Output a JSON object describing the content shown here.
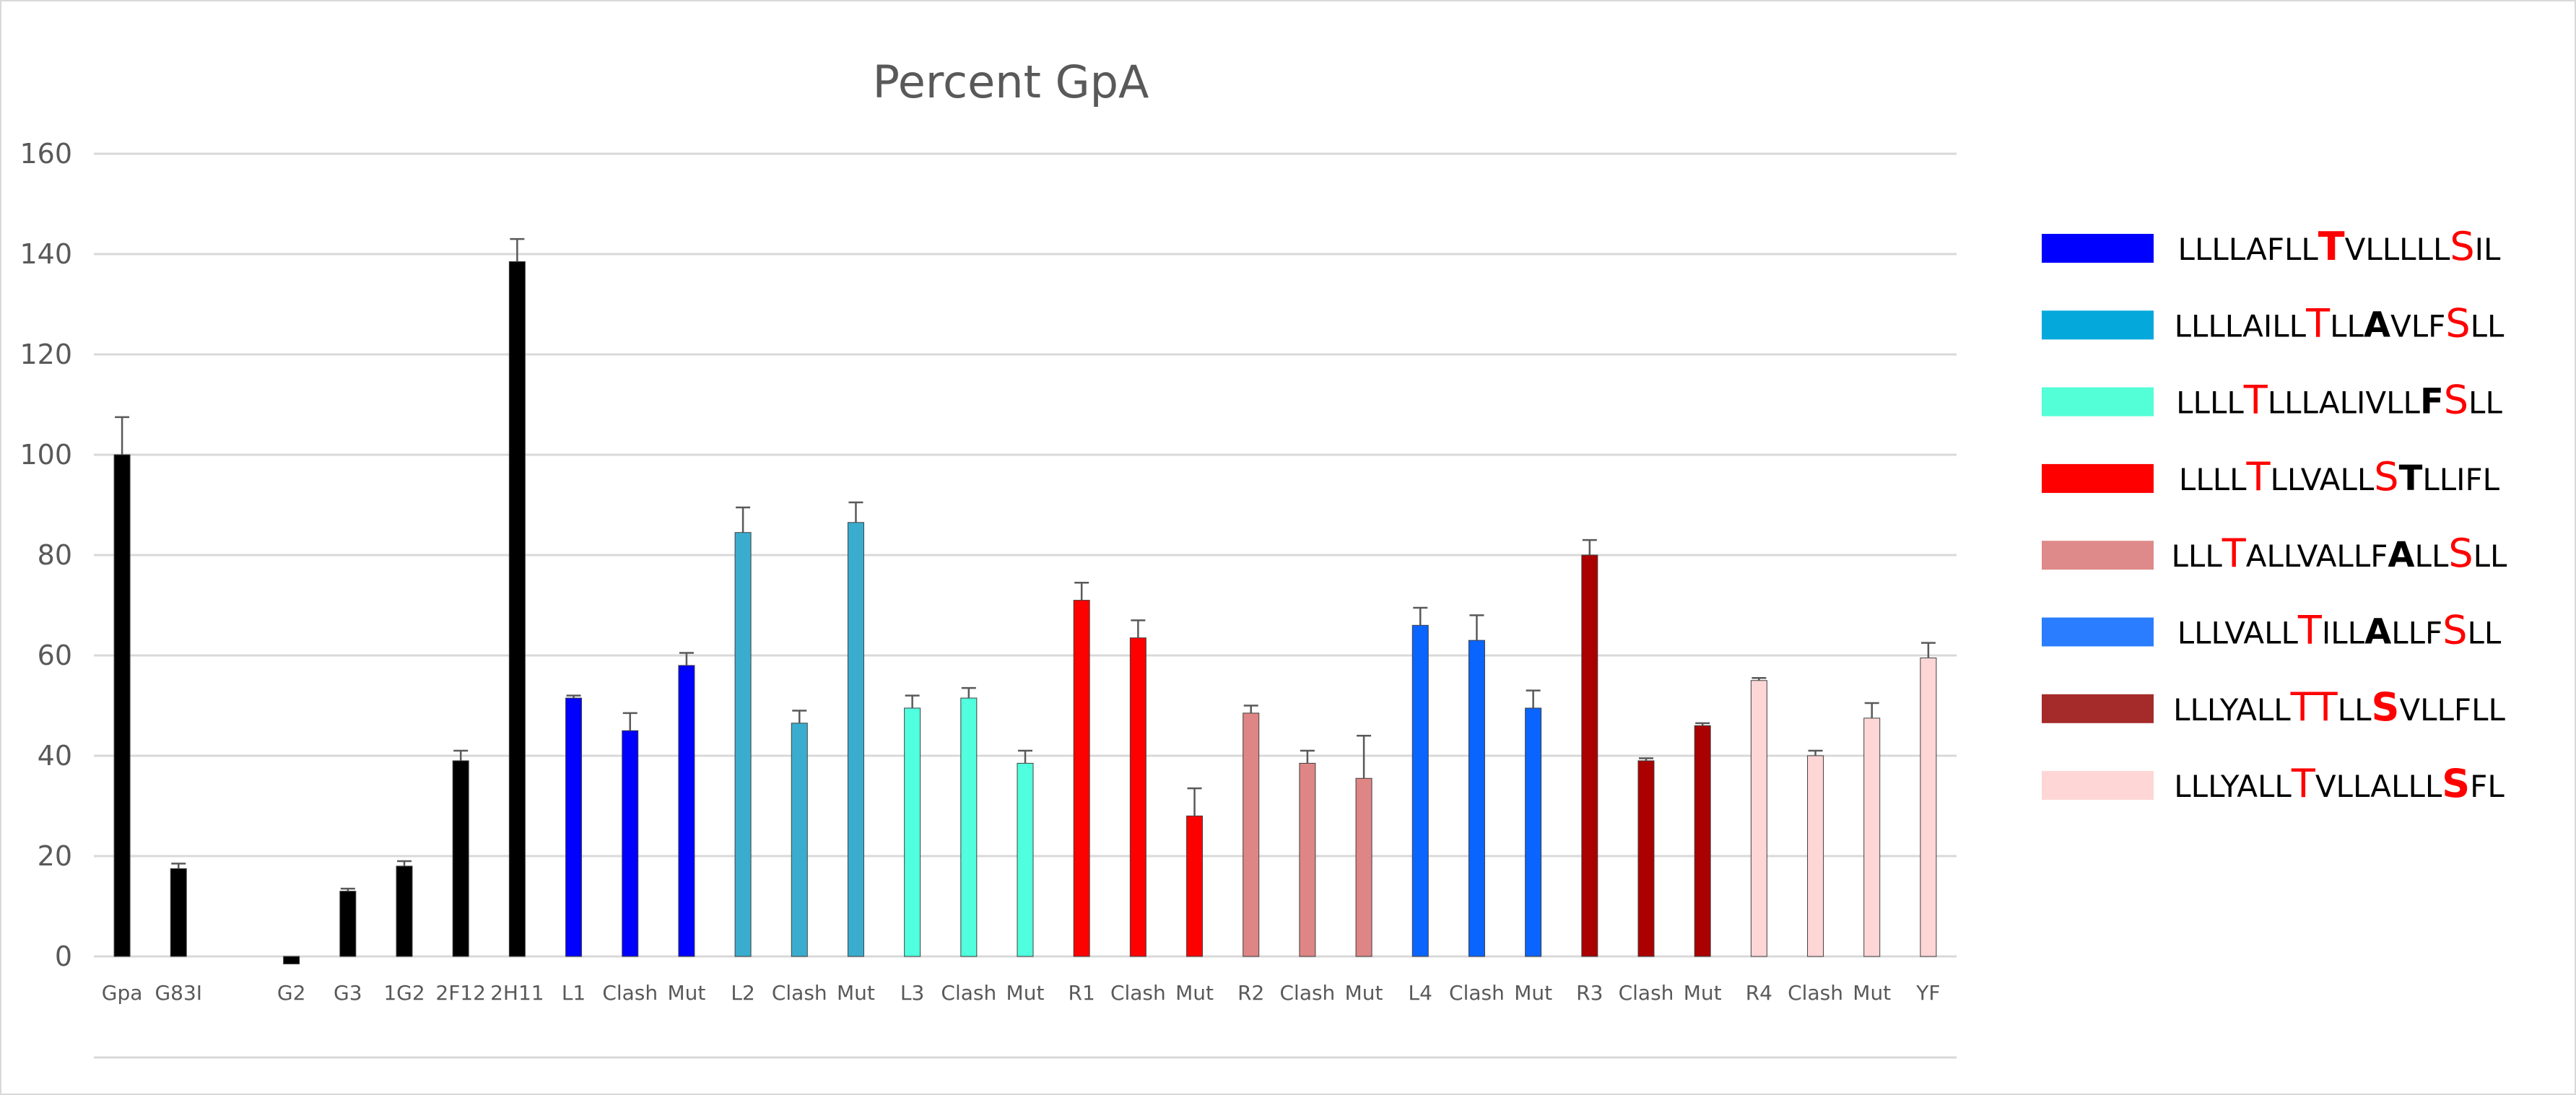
{
  "chart_data": {
    "type": "bar",
    "title": "Percent GpA",
    "xlabel": "",
    "ylabel": "",
    "ylim": [
      0,
      160
    ],
    "yticks": [
      0,
      20,
      40,
      60,
      80,
      100,
      120,
      140,
      160
    ],
    "grid": true,
    "legend_position": "right",
    "categories": [
      "Gpa",
      "G83I",
      "",
      "G2",
      "G3",
      "1G2",
      "2F12",
      "2H11",
      "L1",
      "Clash",
      "Mut",
      "L2",
      "Clash",
      "Mut",
      "L3",
      "Clash",
      "Mut",
      "R1",
      "Clash",
      "Mut",
      "R2",
      "Clash",
      "Mut",
      "L4",
      "Clash",
      "Mut",
      "R3",
      "Clash",
      "Mut",
      "R4",
      "Clash",
      "Mut",
      "YF"
    ],
    "values": [
      100,
      17.5,
      null,
      -1.5,
      13,
      18,
      39,
      138.5,
      51.5,
      45,
      58,
      84.5,
      46.5,
      86.5,
      49.5,
      51.5,
      38.5,
      71,
      63.5,
      28,
      48.5,
      38.5,
      35.5,
      66,
      63,
      49.5,
      80,
      39,
      46,
      55,
      40,
      47.5,
      59.5
    ],
    "errors": [
      7.5,
      1,
      null,
      0,
      0.5,
      1,
      2,
      4.5,
      0.5,
      3.5,
      2.5,
      5,
      2.5,
      4,
      2.5,
      2,
      2.5,
      3.5,
      3.5,
      5.5,
      1.5,
      2.5,
      8.5,
      3.5,
      5,
      3.5,
      3,
      0.5,
      0.5,
      0.5,
      1,
      3,
      3
    ],
    "bar_colors": [
      "#000000",
      "#000000",
      null,
      "#000000",
      "#000000",
      "#000000",
      "#000000",
      "#000000",
      "#0000ff",
      "#0000ff",
      "#0000ff",
      "#3aadce",
      "#3aadce",
      "#3aadce",
      "#50ffde",
      "#50ffde",
      "#50ffde",
      "#ff0000",
      "#ff0000",
      "#ff0000",
      "#de8585",
      "#de8585",
      "#de8585",
      "#0a64ff",
      "#0a64ff",
      "#0a64ff",
      "#aa0000",
      "#aa0000",
      "#aa0000",
      "#ffd6d6",
      "#ffd6d6",
      "#ffd6d6",
      "#ffd6d6"
    ],
    "legend": [
      {
        "color": "#0000ff",
        "segments": [
          [
            "LLLLAFLL",
            "n"
          ],
          [
            "T",
            "rb"
          ],
          [
            "VLLLLL",
            "n"
          ],
          [
            "S",
            "r"
          ],
          [
            "IL",
            "n"
          ]
        ]
      },
      {
        "color": "#05a8db",
        "segments": [
          [
            "LLLLAILL",
            "n"
          ],
          [
            "T",
            "r"
          ],
          [
            "LL",
            "n"
          ],
          [
            "A",
            "b"
          ],
          [
            "VLF",
            "n"
          ],
          [
            "S",
            "r"
          ],
          [
            "LL",
            "n"
          ]
        ]
      },
      {
        "color": "#52ffd6",
        "segments": [
          [
            "LLLL",
            "n"
          ],
          [
            "T",
            "r"
          ],
          [
            "LLLALIVLL",
            "n"
          ],
          [
            "F",
            "b"
          ],
          [
            "S",
            "r"
          ],
          [
            "LL",
            "n"
          ]
        ]
      },
      {
        "color": "#ff0000",
        "segments": [
          [
            "LLLL",
            "n"
          ],
          [
            "T",
            "r"
          ],
          [
            "LLVALL",
            "n"
          ],
          [
            "S",
            "r"
          ],
          [
            "T",
            "b"
          ],
          [
            "LLIFL",
            "n"
          ]
        ]
      },
      {
        "color": "#de8a8a",
        "segments": [
          [
            "LLL",
            "n"
          ],
          [
            "T",
            "r"
          ],
          [
            "ALLVALLF",
            "n"
          ],
          [
            "A",
            "b"
          ],
          [
            "LL",
            "n"
          ],
          [
            "S",
            "r"
          ],
          [
            "LL",
            "n"
          ]
        ]
      },
      {
        "color": "#2a7dff",
        "segments": [
          [
            "LLLVALL",
            "n"
          ],
          [
            "T",
            "r"
          ],
          [
            "ILL",
            "n"
          ],
          [
            "A",
            "b"
          ],
          [
            "LLF",
            "n"
          ],
          [
            "S",
            "r"
          ],
          [
            "LL",
            "n"
          ]
        ]
      },
      {
        "color": "#a52a2a",
        "segments": [
          [
            "LLLYALL",
            "n"
          ],
          [
            "TT",
            "r"
          ],
          [
            "LL",
            "n"
          ],
          [
            "S",
            "rb"
          ],
          [
            "VLLFLL",
            "n"
          ]
        ]
      },
      {
        "color": "#ffd6d6",
        "segments": [
          [
            "LLLYALL",
            "n"
          ],
          [
            "T",
            "r"
          ],
          [
            "VLLALLL",
            "n"
          ],
          [
            "S",
            "rb"
          ],
          [
            "FL",
            "n"
          ]
        ]
      }
    ]
  }
}
